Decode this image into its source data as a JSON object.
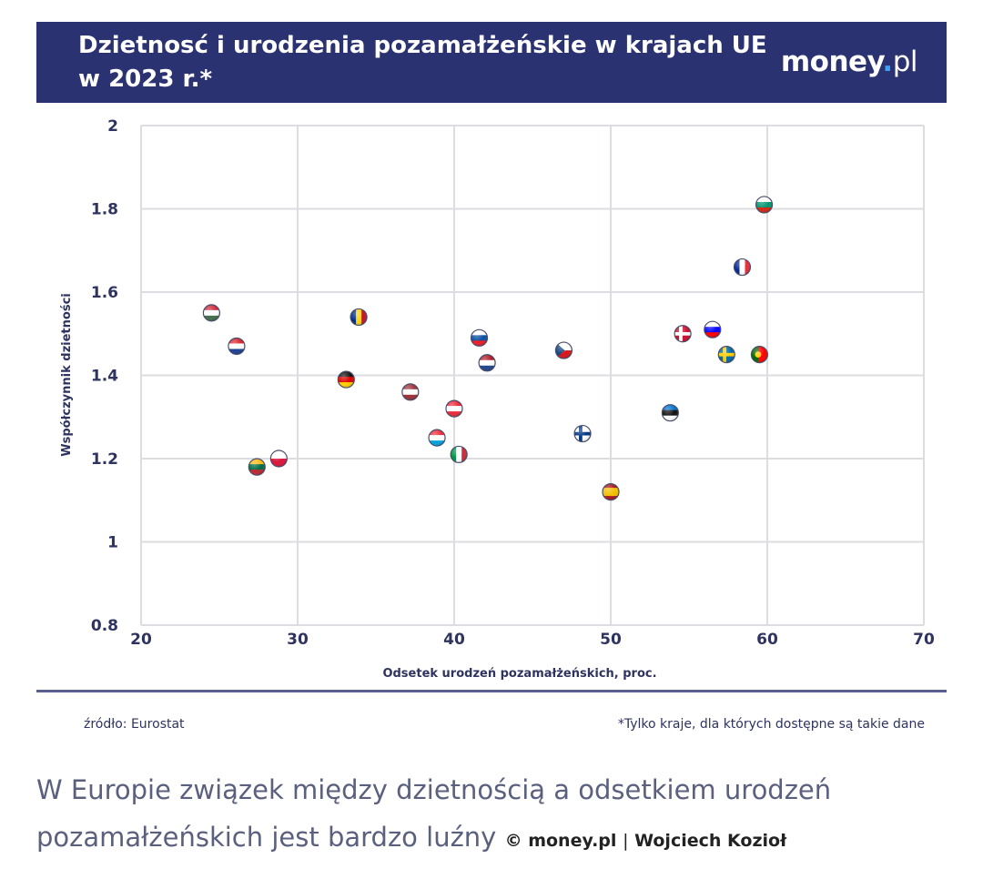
{
  "header": {
    "title": "Dzietnosć i urodzenia pozamałżeńskie w krajach UE w 2023 r.*",
    "logo_main": "money",
    "logo_dot": ".",
    "logo_suffix": "pl"
  },
  "colors": {
    "banner": "#2a3272",
    "axis_text": "#2e335f",
    "grid": "#dcdde3"
  },
  "chart_data": {
    "type": "scatter",
    "xlabel": "Odsetek urodzeń pozamałżeńskich, proc.",
    "ylabel": "Współczynnik dzietności",
    "xlim": [
      20,
      70
    ],
    "ylim": [
      0.8,
      2.0
    ],
    "xticks": [
      20,
      30,
      40,
      50,
      60,
      70
    ],
    "yticks": [
      0.8,
      1.0,
      1.2,
      1.4,
      1.6,
      1.8,
      2.0
    ],
    "ytick_labels": [
      "0.8",
      "1",
      "1.2",
      "1.4",
      "1.6",
      "1.8",
      "2"
    ],
    "grid": true,
    "points": [
      {
        "flag": "hungary",
        "x": 24.5,
        "y": 1.55
      },
      {
        "flag": "croatia",
        "x": 26.1,
        "y": 1.47
      },
      {
        "flag": "lithuania",
        "x": 27.4,
        "y": 1.18
      },
      {
        "flag": "poland",
        "x": 28.8,
        "y": 1.2
      },
      {
        "flag": "germany",
        "x": 33.1,
        "y": 1.39
      },
      {
        "flag": "romania",
        "x": 33.9,
        "y": 1.54
      },
      {
        "flag": "latvia",
        "x": 37.2,
        "y": 1.36
      },
      {
        "flag": "luxembourg",
        "x": 38.9,
        "y": 1.25
      },
      {
        "flag": "austria",
        "x": 40.0,
        "y": 1.32
      },
      {
        "flag": "italy",
        "x": 40.3,
        "y": 1.21
      },
      {
        "flag": "slovakia",
        "x": 41.6,
        "y": 1.49
      },
      {
        "flag": "netherlands",
        "x": 42.1,
        "y": 1.43
      },
      {
        "flag": "czechia",
        "x": 47.0,
        "y": 1.46
      },
      {
        "flag": "finland",
        "x": 48.2,
        "y": 1.26
      },
      {
        "flag": "spain",
        "x": 50.0,
        "y": 1.12
      },
      {
        "flag": "estonia",
        "x": 53.8,
        "y": 1.31
      },
      {
        "flag": "denmark",
        "x": 54.6,
        "y": 1.5
      },
      {
        "flag": "slovenia",
        "x": 56.5,
        "y": 1.51
      },
      {
        "flag": "sweden",
        "x": 57.4,
        "y": 1.45
      },
      {
        "flag": "france",
        "x": 58.4,
        "y": 1.66
      },
      {
        "flag": "portugal",
        "x": 59.5,
        "y": 1.45
      },
      {
        "flag": "bulgaria",
        "x": 59.8,
        "y": 1.81
      }
    ]
  },
  "footer": {
    "source": "źródło: Eurostat",
    "note": "*Tylko kraje, dla których dostępne są takie dane"
  },
  "caption": {
    "text": "W Europie związek między dzietnością a odsetkiem urodzeń pozamałżeńskich jest bardzo luźny",
    "copyright": "©",
    "site": "money.pl",
    "separator": "|",
    "author": "Wojciech Kozioł"
  }
}
